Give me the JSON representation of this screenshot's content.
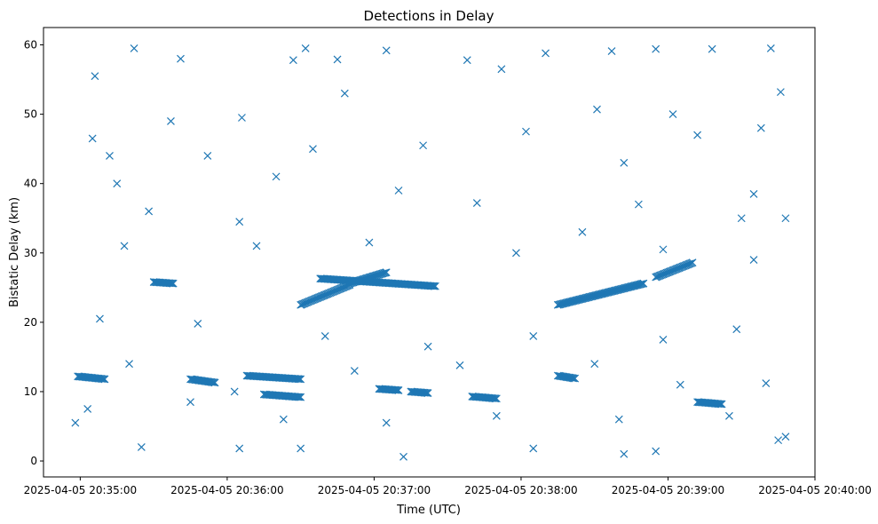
{
  "chart_data": {
    "type": "scatter",
    "title": "Detections in Delay",
    "xlabel": "Time (UTC)",
    "ylabel": "Bistatic Delay (km)",
    "x_unit": "time (UTC)",
    "xlim": [
      "2025-04-05 20:34:45",
      "2025-04-05 20:40:00"
    ],
    "ylim": [
      -2.3,
      62.5
    ],
    "x_ticks": [
      "2025-04-05 20:35:00",
      "2025-04-05 20:36:00",
      "2025-04-05 20:37:00",
      "2025-04-05 20:38:00",
      "2025-04-05 20:39:00",
      "2025-04-05 20:40:00"
    ],
    "y_ticks": [
      0,
      10,
      20,
      30,
      40,
      50,
      60
    ],
    "marker": "x",
    "marker_color": "#1f77b4",
    "grid": false,
    "legend": "none",
    "series": [
      {
        "tracks": [
          {
            "start": "2025-04-05 20:34:59",
            "end": "2025-04-05 20:35:10",
            "y_start": 12.2,
            "y_end": 11.8
          },
          {
            "start": "2025-04-05 20:35:30",
            "end": "2025-04-05 20:35:38",
            "y_start": 25.8,
            "y_end": 25.6
          },
          {
            "start": "2025-04-05 20:35:45",
            "end": "2025-04-05 20:35:55",
            "y_start": 11.8,
            "y_end": 11.3
          },
          {
            "start": "2025-04-05 20:36:08",
            "end": "2025-04-05 20:36:30",
            "y_start": 12.3,
            "y_end": 11.8
          },
          {
            "start": "2025-04-05 20:36:15",
            "end": "2025-04-05 20:36:30",
            "y_start": 9.6,
            "y_end": 9.2
          },
          {
            "start": "2025-04-05 20:36:30",
            "end": "2025-04-05 20:36:50",
            "y_start": 22.5,
            "y_end": 25.4
          },
          {
            "start": "2025-04-05 20:36:38",
            "end": "2025-04-05 20:37:25",
            "y_start": 26.3,
            "y_end": 25.2
          },
          {
            "start": "2025-04-05 20:36:50",
            "end": "2025-04-05 20:37:05",
            "y_start": 25.6,
            "y_end": 27.2
          },
          {
            "start": "2025-04-05 20:37:02",
            "end": "2025-04-05 20:37:10",
            "y_start": 10.4,
            "y_end": 10.2
          },
          {
            "start": "2025-04-05 20:37:15",
            "end": "2025-04-05 20:37:22",
            "y_start": 10.0,
            "y_end": 9.8
          },
          {
            "start": "2025-04-05 20:37:40",
            "end": "2025-04-05 20:37:50",
            "y_start": 9.3,
            "y_end": 9.0
          },
          {
            "start": "2025-04-05 20:38:15",
            "end": "2025-04-05 20:38:22",
            "y_start": 12.3,
            "y_end": 11.9
          },
          {
            "start": "2025-04-05 20:38:15",
            "end": "2025-04-05 20:38:50",
            "y_start": 22.5,
            "y_end": 25.6
          },
          {
            "start": "2025-04-05 20:38:55",
            "end": "2025-04-05 20:39:10",
            "y_start": 26.5,
            "y_end": 28.6
          },
          {
            "start": "2025-04-05 20:39:12",
            "end": "2025-04-05 20:39:22",
            "y_start": 8.5,
            "y_end": 8.2
          }
        ],
        "clutter": [
          {
            "time": "2025-04-05 20:35:06",
            "delay": 55.5
          },
          {
            "time": "2025-04-05 20:35:22",
            "delay": 59.5
          },
          {
            "time": "2025-04-05 20:35:41",
            "delay": 58.0
          },
          {
            "time": "2025-04-05 20:36:06",
            "delay": 49.5
          },
          {
            "time": "2025-04-05 20:36:27",
            "delay": 57.8
          },
          {
            "time": "2025-04-05 20:36:32",
            "delay": 59.5
          },
          {
            "time": "2025-04-05 20:36:45",
            "delay": 57.9
          },
          {
            "time": "2025-04-05 20:37:05",
            "delay": 59.2
          },
          {
            "time": "2025-04-05 20:37:38",
            "delay": 57.8
          },
          {
            "time": "2025-04-05 20:38:10",
            "delay": 58.8
          },
          {
            "time": "2025-04-05 20:38:37",
            "delay": 59.1
          },
          {
            "time": "2025-04-05 20:38:55",
            "delay": 59.4
          },
          {
            "time": "2025-04-05 20:39:18",
            "delay": 59.4
          },
          {
            "time": "2025-04-05 20:39:42",
            "delay": 59.5
          },
          {
            "time": "2025-04-05 20:35:05",
            "delay": 46.5
          },
          {
            "time": "2025-04-05 20:35:37",
            "delay": 49.0
          },
          {
            "time": "2025-04-05 20:36:48",
            "delay": 53.0
          },
          {
            "time": "2025-04-05 20:37:52",
            "delay": 56.5
          },
          {
            "time": "2025-04-05 20:38:31",
            "delay": 50.7
          },
          {
            "time": "2025-04-05 20:39:02",
            "delay": 50.0
          },
          {
            "time": "2025-04-05 20:39:38",
            "delay": 48.0
          },
          {
            "time": "2025-04-05 20:35:12",
            "delay": 44.0
          },
          {
            "time": "2025-04-05 20:35:52",
            "delay": 44.0
          },
          {
            "time": "2025-04-05 20:36:35",
            "delay": 45.0
          },
          {
            "time": "2025-04-05 20:37:20",
            "delay": 45.5
          },
          {
            "time": "2025-04-05 20:38:02",
            "delay": 47.5
          },
          {
            "time": "2025-04-05 20:38:42",
            "delay": 43.0
          },
          {
            "time": "2025-04-05 20:39:12",
            "delay": 47.0
          },
          {
            "time": "2025-04-05 20:35:15",
            "delay": 40.0
          },
          {
            "time": "2025-04-05 20:36:20",
            "delay": 41.0
          },
          {
            "time": "2025-04-05 20:37:10",
            "delay": 39.0
          },
          {
            "time": "2025-04-05 20:38:48",
            "delay": 37.0
          },
          {
            "time": "2025-04-05 20:39:35",
            "delay": 38.5
          },
          {
            "time": "2025-04-05 20:35:28",
            "delay": 36.0
          },
          {
            "time": "2025-04-05 20:36:05",
            "delay": 34.5
          },
          {
            "time": "2025-04-05 20:37:42",
            "delay": 37.2
          },
          {
            "time": "2025-04-05 20:38:25",
            "delay": 33.0
          },
          {
            "time": "2025-04-05 20:39:30",
            "delay": 35.0
          },
          {
            "time": "2025-04-05 20:35:18",
            "delay": 31.0
          },
          {
            "time": "2025-04-05 20:36:12",
            "delay": 31.0
          },
          {
            "time": "2025-04-05 20:36:58",
            "delay": 31.5
          },
          {
            "time": "2025-04-05 20:37:58",
            "delay": 30.0
          },
          {
            "time": "2025-04-05 20:38:58",
            "delay": 30.5
          },
          {
            "time": "2025-04-05 20:39:35",
            "delay": 29.0
          },
          {
            "time": "2025-04-05 20:35:08",
            "delay": 20.5
          },
          {
            "time": "2025-04-05 20:35:48",
            "delay": 19.8
          },
          {
            "time": "2025-04-05 20:36:40",
            "delay": 18.0
          },
          {
            "time": "2025-04-05 20:37:22",
            "delay": 16.5
          },
          {
            "time": "2025-04-05 20:38:05",
            "delay": 18.0
          },
          {
            "time": "2025-04-05 20:38:58",
            "delay": 17.5
          },
          {
            "time": "2025-04-05 20:39:28",
            "delay": 19.0
          },
          {
            "time": "2025-04-05 20:35:20",
            "delay": 14.0
          },
          {
            "time": "2025-04-05 20:36:03",
            "delay": 10.0
          },
          {
            "time": "2025-04-05 20:36:52",
            "delay": 13.0
          },
          {
            "time": "2025-04-05 20:37:35",
            "delay": 13.8
          },
          {
            "time": "2025-04-05 20:38:30",
            "delay": 14.0
          },
          {
            "time": "2025-04-05 20:39:05",
            "delay": 11.0
          },
          {
            "time": "2025-04-05 20:39:40",
            "delay": 11.2
          },
          {
            "time": "2025-04-05 20:35:03",
            "delay": 7.5
          },
          {
            "time": "2025-04-05 20:35:45",
            "delay": 8.5
          },
          {
            "time": "2025-04-05 20:36:23",
            "delay": 6.0
          },
          {
            "time": "2025-04-05 20:37:05",
            "delay": 5.5
          },
          {
            "time": "2025-04-05 20:37:50",
            "delay": 6.5
          },
          {
            "time": "2025-04-05 20:38:40",
            "delay": 6.0
          },
          {
            "time": "2025-04-05 20:39:25",
            "delay": 6.5
          },
          {
            "time": "2025-04-05 20:35:25",
            "delay": 2.0
          },
          {
            "time": "2025-04-05 20:36:05",
            "delay": 1.8
          },
          {
            "time": "2025-04-05 20:36:30",
            "delay": 1.8
          },
          {
            "time": "2025-04-05 20:37:12",
            "delay": 0.6
          },
          {
            "time": "2025-04-05 20:38:05",
            "delay": 1.8
          },
          {
            "time": "2025-04-05 20:38:42",
            "delay": 1.0
          },
          {
            "time": "2025-04-05 20:38:55",
            "delay": 1.4
          },
          {
            "time": "2025-04-05 20:39:45",
            "delay": 3.0
          },
          {
            "time": "2025-04-05 20:34:58",
            "delay": 5.5
          },
          {
            "time": "2025-04-05 20:39:48",
            "delay": 3.5
          },
          {
            "time": "2025-04-05 20:39:48",
            "delay": 35.0
          },
          {
            "time": "2025-04-05 20:39:46",
            "delay": 53.2
          }
        ]
      }
    ]
  }
}
